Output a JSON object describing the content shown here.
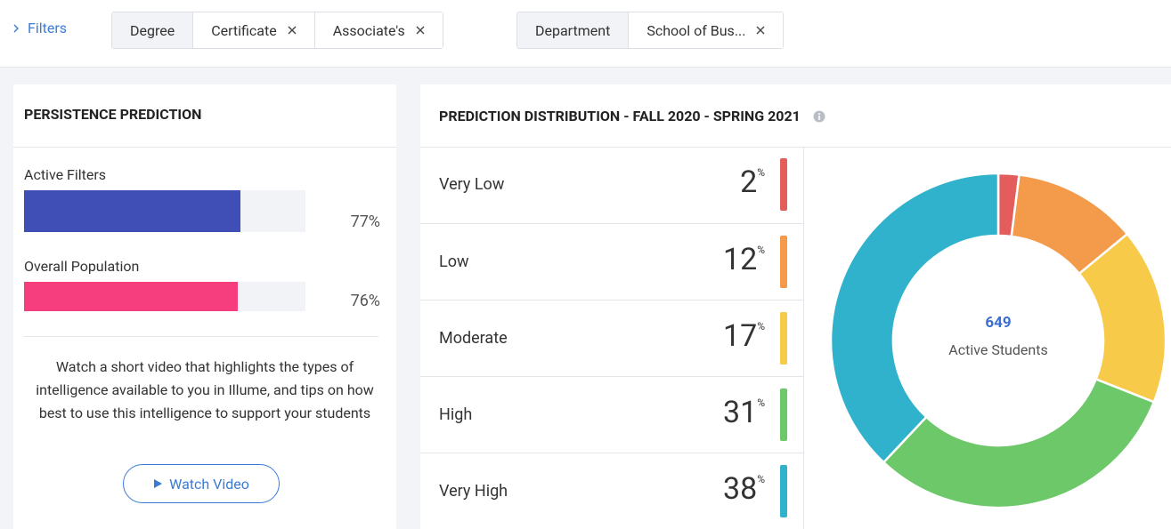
{
  "filters": {
    "toggle": "Filters",
    "groups": [
      {
        "label": "Degree",
        "chips": [
          "Certificate",
          "Associate's"
        ]
      },
      {
        "label": "Department",
        "chips": [
          "School of Bus..."
        ]
      }
    ]
  },
  "persistence": {
    "title": "PERSISTENCE PREDICTION",
    "bars": [
      {
        "label": "Active Filters",
        "value": 77,
        "value_label": "77%",
        "color": "#3f4fb5"
      },
      {
        "label": "Overall Population",
        "value": 76,
        "value_label": "76%",
        "color": "#f63d7e"
      }
    ],
    "description": "Watch a short video that highlights the types of intelligence available to you in Illume, and tips on how best to use this intelligence to support your students",
    "button": "Watch Video"
  },
  "distribution": {
    "title": "PREDICTION DISTRIBUTION - FALL 2020 - SPRING 2021",
    "unit": "%",
    "levels": [
      {
        "label": "Very Low",
        "value": 2,
        "color": "#e35d5d"
      },
      {
        "label": "Low",
        "value": 12,
        "color": "#f39a4b"
      },
      {
        "label": "Moderate",
        "value": 17,
        "color": "#f8ca4a"
      },
      {
        "label": "High",
        "value": 31,
        "color": "#6cc869"
      },
      {
        "label": "Very High",
        "value": 38,
        "color": "#30b2cc"
      }
    ],
    "total": "649",
    "total_label": "Active Students"
  }
}
